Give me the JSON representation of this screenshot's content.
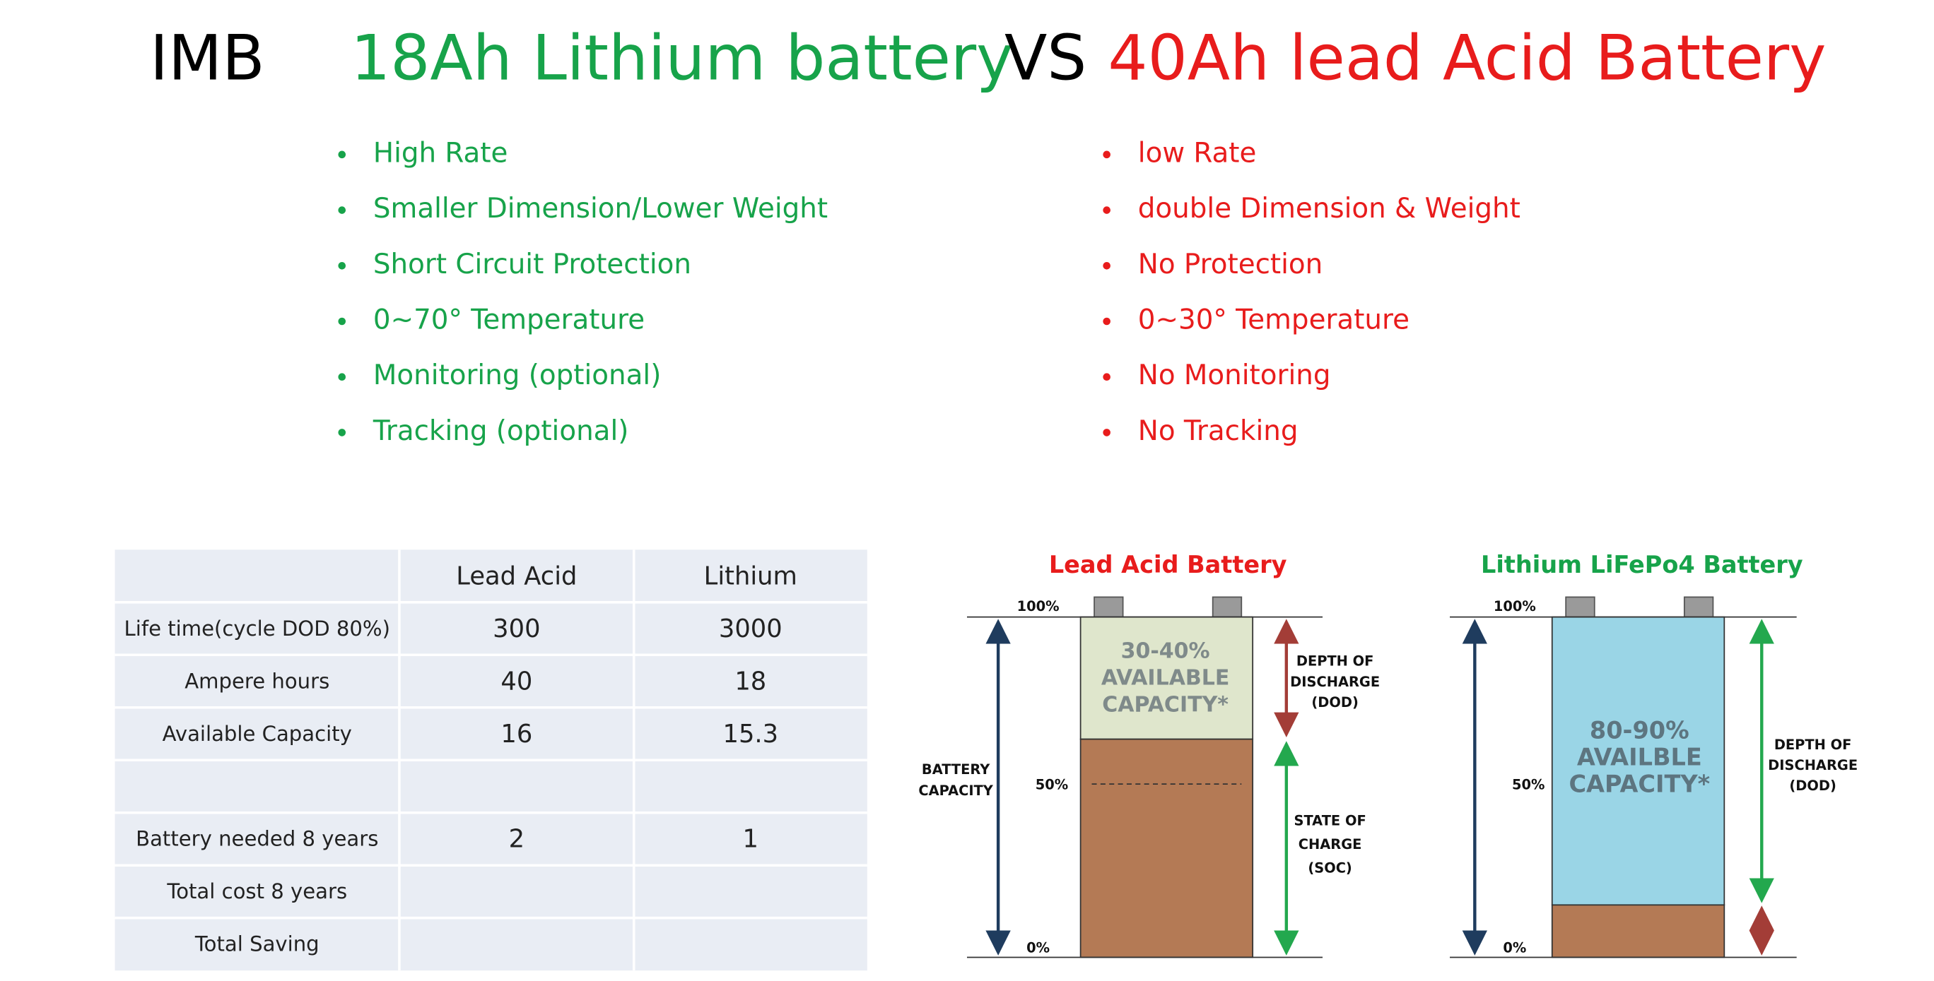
{
  "title": {
    "brand": "IMB",
    "lithium": "18Ah Lithium battery",
    "vs": "VS",
    "lead": "40Ah lead Acid Battery"
  },
  "lithium_features": [
    "High Rate",
    "Smaller Dimension/Lower Weight",
    "Short Circuit Protection",
    "0~70° Temperature",
    "Monitoring (optional)",
    "Tracking (optional)"
  ],
  "lead_features": [
    "low Rate",
    "double Dimension & Weight",
    "No Protection",
    "0~30° Temperature",
    "No Monitoring",
    "No Tracking"
  ],
  "table": {
    "header": [
      "Lead Acid",
      "Lithium"
    ],
    "rows": [
      [
        "Life time(cycle DOD 80%)",
        "300",
        "3000"
      ],
      [
        "Ampere hours",
        "40",
        "18"
      ],
      [
        "Available Capacity",
        "16",
        "15.3"
      ],
      [
        null,
        null,
        null
      ],
      [
        "Battery needed 8 years",
        "2",
        "1"
      ],
      [
        "Total cost  8 years",
        null,
        null
      ],
      [
        "Total Saving",
        null,
        null
      ]
    ]
  },
  "diagrams": [
    {
      "title": "Lead Acid Battery",
      "top": "100%",
      "mid": "50%",
      "bottom": "0%",
      "left_label": [
        "BATTERY",
        "CAPACITY"
      ],
      "capacity": [
        "30-40%",
        "AVAILABLE",
        "CAPACITY*"
      ],
      "dod": [
        "DEPTH OF",
        "DISCHARGE",
        "(DOD)"
      ],
      "soc": [
        "STATE OF",
        "CHARGE",
        "(SOC)"
      ]
    },
    {
      "title": "Lithium LiFePo4 Battery",
      "top": "100%",
      "mid": "50%",
      "bottom": "0%",
      "capacity": [
        "80-90%",
        "AVAILBLE",
        "CAPACITY*"
      ],
      "dod": [
        "DEPTH OF",
        "DISCHARGE",
        "(DOD)"
      ]
    }
  ]
}
